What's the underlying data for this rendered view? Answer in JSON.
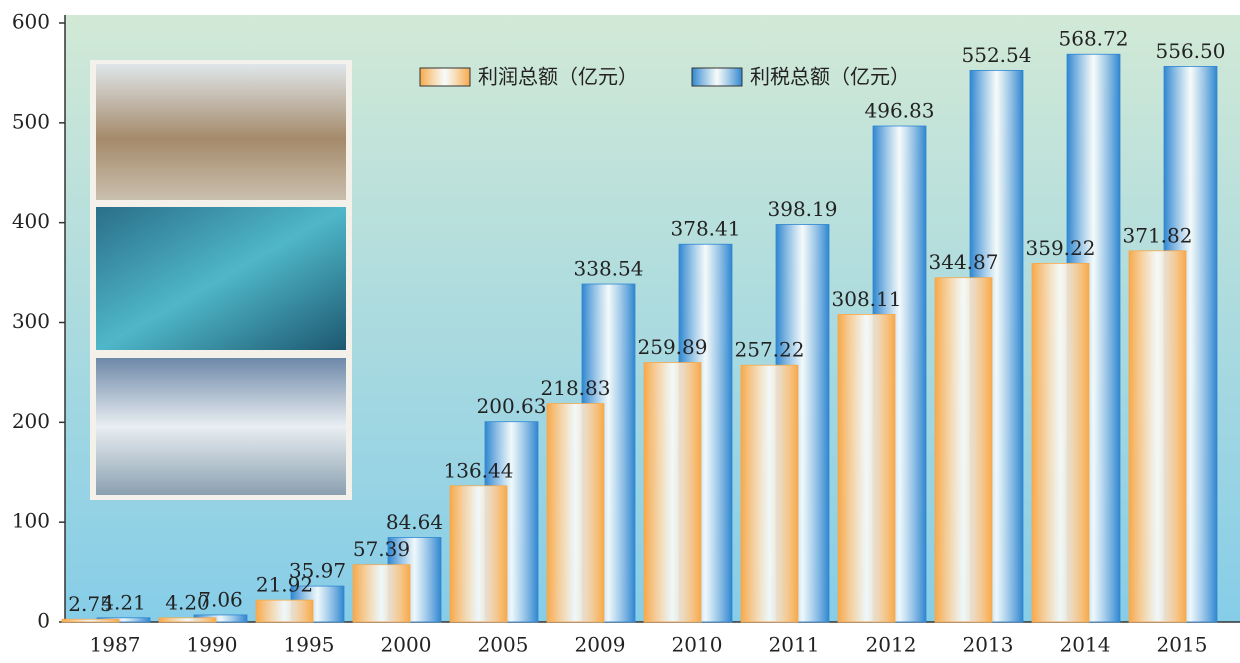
{
  "chart_data": {
    "type": "bar",
    "categories": [
      "1987",
      "1990",
      "1995",
      "2000",
      "2005",
      "2009",
      "2010",
      "2011",
      "2012",
      "2013",
      "2014",
      "2015"
    ],
    "series": [
      {
        "name": "利润总额（亿元）",
        "color": "#f7a94a",
        "values": [
          2.75,
          4.2,
          21.92,
          57.39,
          136.44,
          218.83,
          259.89,
          257.22,
          308.11,
          344.87,
          359.22,
          371.82
        ],
        "value_labels": [
          "2.75",
          "4.20",
          "21.92",
          "57.39",
          "136.44",
          "218.83",
          "259.89",
          "257.22",
          "308.11",
          "344.87",
          "359.22",
          "371.82"
        ]
      },
      {
        "name": "利税总额（亿元）",
        "color": "#2f86d0",
        "values": [
          4.21,
          7.06,
          35.97,
          84.64,
          200.63,
          338.54,
          378.41,
          398.19,
          496.83,
          552.54,
          568.72,
          556.5
        ],
        "value_labels": [
          "4.21",
          "7.06",
          "35.97",
          "84.64",
          "200.63",
          "338.54",
          "378.41",
          "398.19",
          "496.83",
          "552.54",
          "568.72",
          "556.50"
        ]
      }
    ],
    "ylim": [
      0,
      600
    ],
    "yticks": [
      0,
      100,
      200,
      300,
      400,
      500,
      600
    ]
  }
}
